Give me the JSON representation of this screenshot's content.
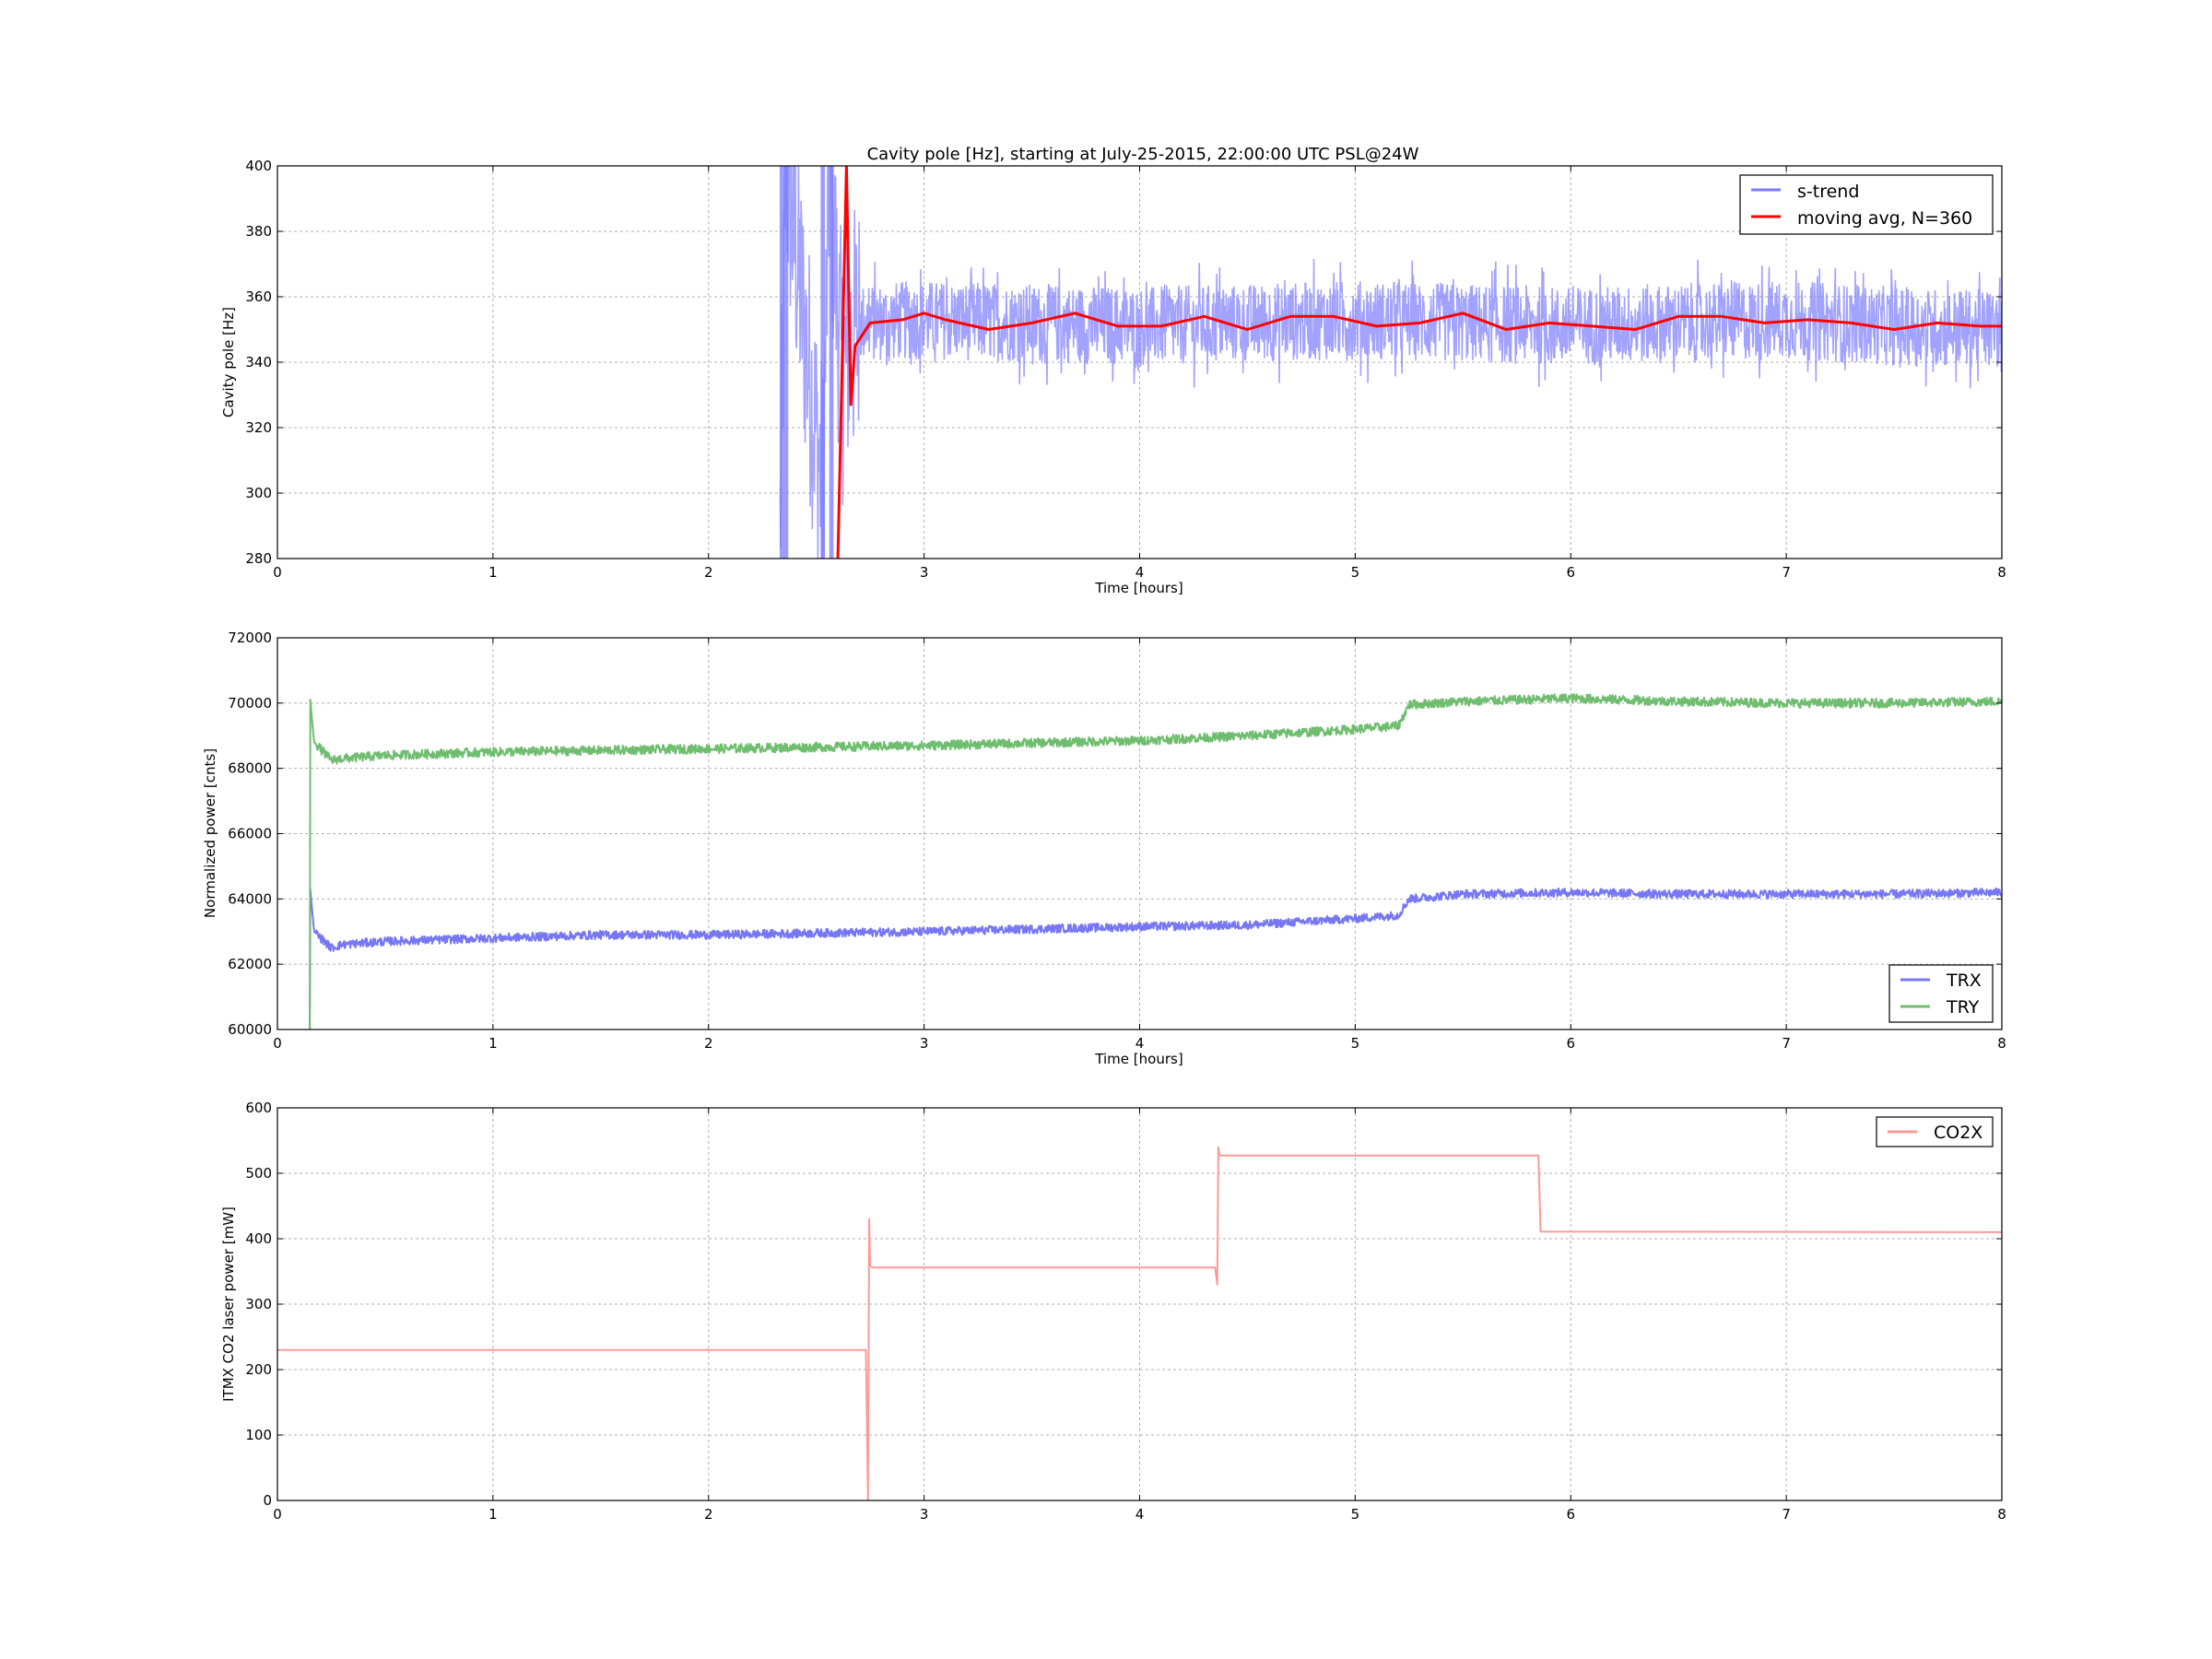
{
  "chart_data": [
    {
      "type": "line",
      "title": "Cavity pole [Hz], starting at July-25-2015, 22:00:00 UTC PSL@24W",
      "xlabel": "Time [hours]",
      "ylabel": "Cavity pole [Hz]",
      "xlim": [
        0,
        8
      ],
      "ylim": [
        280,
        400
      ],
      "xticks": [
        "0",
        "1",
        "2",
        "3",
        "4",
        "5",
        "6",
        "7",
        "8"
      ],
      "yticks": [
        "280",
        "300",
        "320",
        "340",
        "360",
        "380",
        "400"
      ],
      "grid": true,
      "legend_position": "top-right",
      "series": [
        {
          "name": "s-trend",
          "color": "#7b7bff",
          "style": "noisy",
          "x": [
            0,
            2.33,
            2.36,
            2.53,
            2.56,
            2.62,
            2.65,
            2.7,
            3.0,
            3.5,
            4.0,
            4.5,
            5.0,
            5.5,
            6.0,
            6.5,
            7.0,
            7.5,
            8.0
          ],
          "y": [
            null,
            280,
            400,
            300,
            400,
            335,
            345,
            352,
            353,
            352,
            351,
            352,
            353,
            352,
            351,
            352,
            353,
            351,
            350
          ],
          "spread": 12
        },
        {
          "name": "moving avg, N=360",
          "color": "#ff0000",
          "style": "smooth",
          "x": [
            2.6,
            2.64,
            2.66,
            2.68,
            2.75,
            2.9,
            3.0,
            3.1,
            3.3,
            3.5,
            3.7,
            3.9,
            4.1,
            4.3,
            4.5,
            4.7,
            4.9,
            5.1,
            5.3,
            5.5,
            5.7,
            5.9,
            6.1,
            6.3,
            6.5,
            6.7,
            6.9,
            7.1,
            7.3,
            7.5,
            7.7,
            7.9,
            8.0
          ],
          "y": [
            280,
            400,
            327,
            345,
            352,
            353,
            355,
            353,
            350,
            352,
            355,
            351,
            351,
            354,
            350,
            354,
            354,
            351,
            352,
            355,
            350,
            352,
            351,
            350,
            354,
            354,
            352,
            353,
            352,
            350,
            352,
            351,
            351
          ]
        }
      ]
    },
    {
      "type": "line",
      "title": "",
      "xlabel": "Time [hours]",
      "ylabel": "Normalized power [cnts]",
      "xlim": [
        0,
        8
      ],
      "ylim": [
        60000,
        72000
      ],
      "xticks": [
        "0",
        "1",
        "2",
        "3",
        "4",
        "5",
        "6",
        "7",
        "8"
      ],
      "yticks": [
        "60000",
        "62000",
        "64000",
        "66000",
        "68000",
        "70000",
        "72000"
      ],
      "grid": true,
      "legend_position": "bottom-right",
      "series": [
        {
          "name": "TRX",
          "color": "#7777f5",
          "style": "band",
          "x": [
            0.15,
            0.15,
            0.17,
            0.25,
            0.3,
            0.5,
            1.0,
            1.5,
            2.0,
            3.0,
            4.0,
            4.5,
            5.0,
            5.2,
            5.25,
            5.5,
            6.0,
            6.5,
            7.0,
            7.5,
            8.0
          ],
          "y": [
            60000,
            64500,
            63000,
            62500,
            62600,
            62700,
            62800,
            62900,
            62900,
            63000,
            63150,
            63200,
            63400,
            63500,
            64000,
            64150,
            64200,
            64150,
            64150,
            64150,
            64200
          ],
          "spread": 130
        },
        {
          "name": "TRY",
          "color": "#6fbd6f",
          "style": "band",
          "x": [
            0.15,
            0.15,
            0.17,
            0.25,
            0.3,
            0.5,
            1.0,
            1.5,
            2.0,
            3.0,
            4.0,
            4.5,
            5.0,
            5.2,
            5.25,
            5.5,
            6.0,
            6.5,
            7.0,
            7.5,
            8.0
          ],
          "y": [
            60000,
            70300,
            68800,
            68250,
            68300,
            68400,
            68500,
            68550,
            68600,
            68700,
            68850,
            69000,
            69200,
            69300,
            69950,
            70050,
            70150,
            70050,
            70000,
            70000,
            70050
          ],
          "spread": 140
        }
      ]
    },
    {
      "type": "line",
      "title": "",
      "xlabel": "",
      "ylabel": "ITMX CO2 laser power [mW]",
      "xlim": [
        0,
        8
      ],
      "ylim": [
        0,
        600
      ],
      "xticks": [
        "0",
        "1",
        "2",
        "3",
        "4",
        "5",
        "6",
        "7",
        "8"
      ],
      "yticks": [
        "0",
        "100",
        "200",
        "300",
        "400",
        "500",
        "600"
      ],
      "grid": true,
      "legend_position": "top-right",
      "series": [
        {
          "name": "CO2X",
          "color": "#ff9999",
          "style": "plain",
          "x": [
            0,
            2.73,
            2.74,
            2.745,
            2.75,
            2.76,
            3.5,
            4.35,
            4.36,
            4.365,
            4.37,
            4.38,
            5.0,
            5.85,
            5.86,
            8.0
          ],
          "y": [
            230,
            230,
            0,
            430,
            358,
            356,
            356,
            356,
            330,
            540,
            528,
            527,
            527,
            527,
            411,
            410
          ]
        }
      ]
    }
  ]
}
